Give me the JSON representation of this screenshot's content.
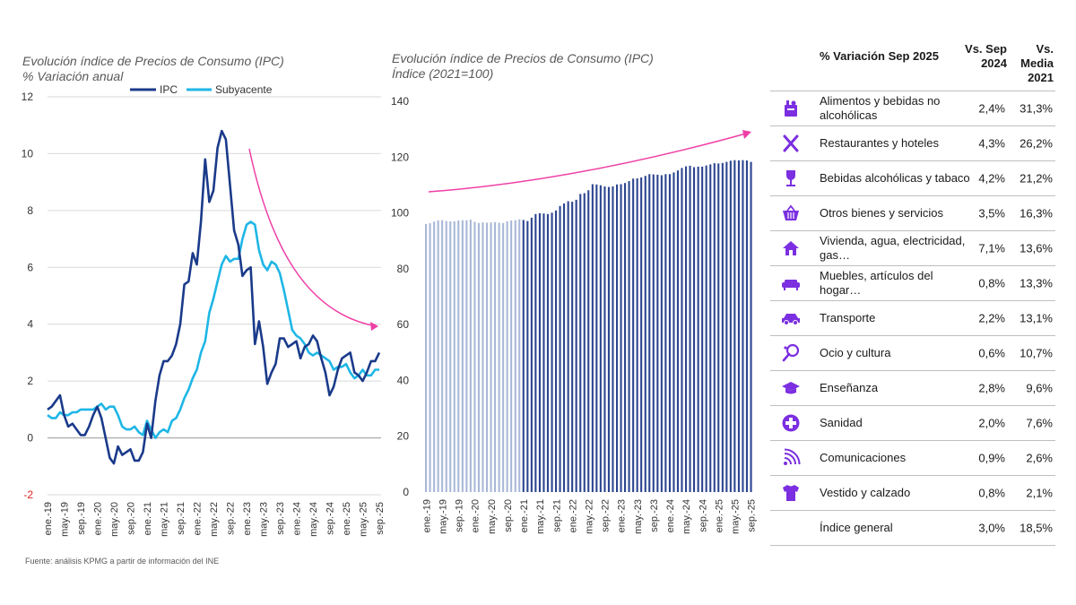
{
  "colors": {
    "ipc": "#1a3a8a",
    "subyacente": "#1fb6e6",
    "arrow": "#ee3fa6",
    "icon": "#7b2fe0",
    "bar_dark": "#2c4590",
    "bar_light": "#a9b8d8",
    "grid": "#d9d9d9"
  },
  "chart_data": [
    {
      "type": "line",
      "title": "Evolución índice de Precios de Consumo (IPC)",
      "subtitle": "% Variación anual",
      "ylim": [
        -2,
        12
      ],
      "yticks": [
        "12",
        "10",
        "8",
        "6",
        "4",
        "2",
        "0",
        "-2"
      ],
      "x_tick_labels": [
        "ene.-19",
        "may.-19",
        "sep.-19",
        "ene.-20",
        "may.-20",
        "sep.-20",
        "ene.-21",
        "may.-21",
        "sep.-21",
        "ene.-22",
        "may.-22",
        "sep.-22",
        "ene.-23",
        "may.-23",
        "sep.-23",
        "ene.-24",
        "may.-24",
        "sep.-24",
        "ene.-25",
        "may.-25",
        "sep.-25"
      ],
      "legend": [
        "IPC",
        "Subyacente"
      ],
      "legend_position": "top",
      "series": [
        {
          "name": "IPC",
          "values": [
            1.0,
            1.1,
            1.3,
            1.5,
            0.8,
            0.4,
            0.5,
            0.3,
            0.1,
            0.1,
            0.4,
            0.8,
            1.1,
            0.7,
            0.0,
            -0.7,
            -0.9,
            -0.3,
            -0.6,
            -0.5,
            -0.4,
            -0.8,
            -0.8,
            -0.5,
            0.5,
            0.0,
            1.3,
            2.2,
            2.7,
            2.7,
            2.9,
            3.3,
            4.0,
            5.4,
            5.5,
            6.5,
            6.1,
            7.6,
            9.8,
            8.3,
            8.7,
            10.2,
            10.8,
            10.5,
            8.9,
            7.3,
            6.8,
            5.7,
            5.9,
            6.0,
            3.3,
            4.1,
            3.2,
            1.9,
            2.3,
            2.6,
            3.5,
            3.5,
            3.2,
            3.3,
            3.4,
            2.8,
            3.2,
            3.3,
            3.6,
            3.4,
            2.8,
            2.3,
            1.5,
            1.8,
            2.4,
            2.8,
            2.9,
            3.0,
            2.3,
            2.2,
            2.0,
            2.3,
            2.7,
            2.7,
            3.0
          ]
        },
        {
          "name": "Subyacente",
          "values": [
            0.8,
            0.7,
            0.7,
            0.9,
            0.8,
            0.8,
            0.9,
            0.9,
            1.0,
            1.0,
            1.0,
            1.0,
            1.1,
            1.2,
            1.0,
            1.1,
            1.1,
            0.8,
            0.4,
            0.3,
            0.3,
            0.4,
            0.2,
            0.1,
            0.6,
            0.3,
            0.0,
            0.2,
            0.3,
            0.2,
            0.6,
            0.7,
            1.0,
            1.4,
            1.7,
            2.1,
            2.4,
            3.0,
            3.4,
            4.4,
            4.9,
            5.5,
            6.1,
            6.4,
            6.2,
            6.3,
            6.3,
            7.0,
            7.5,
            7.6,
            7.5,
            6.6,
            6.1,
            5.9,
            6.2,
            6.1,
            5.8,
            5.2,
            4.5,
            3.8,
            3.6,
            3.5,
            3.3,
            3.0,
            2.9,
            3.0,
            2.9,
            2.8,
            2.7,
            2.4,
            2.5,
            2.5,
            2.6,
            2.3,
            2.1,
            2.2,
            2.4,
            2.2,
            2.2,
            2.4,
            2.4
          ]
        }
      ],
      "annotation": "downward trend arrow"
    },
    {
      "type": "bar",
      "title": "Evolución índice de Precios de Consumo (IPC)",
      "subtitle": "Índice (2021=100)",
      "ylim": [
        0,
        140
      ],
      "yticks": [
        "140",
        "120",
        "100",
        "80",
        "60",
        "40",
        "20",
        "0"
      ],
      "x_tick_labels": [
        "ene.-19",
        "may.-19",
        "sep.-19",
        "ene.-20",
        "may.-20",
        "sep.-20",
        "ene.-21",
        "may.-21",
        "sep.-21",
        "ene.-22",
        "may.-22",
        "sep.-22",
        "ene.-23",
        "may.-23",
        "sep.-23",
        "ene.-24",
        "may.-24",
        "sep.-24",
        "ene.-25",
        "may.-25",
        "sep.-25"
      ],
      "series": [
        {
          "name": "IPC índice",
          "values": [
            96.0,
            96.3,
            96.9,
            97.3,
            97.4,
            97.1,
            97.0,
            97.0,
            97.3,
            97.4,
            97.4,
            97.6,
            96.8,
            96.4,
            96.6,
            96.5,
            96.6,
            96.7,
            96.5,
            96.4,
            97.0,
            97.3,
            97.4,
            97.7,
            97.5,
            97.1,
            98.3,
            99.6,
            99.9,
            99.8,
            99.6,
            100.1,
            100.9,
            102.5,
            103.4,
            104.2,
            104.0,
            104.7,
            106.8,
            107.1,
            108.1,
            110.3,
            110.2,
            109.9,
            109.5,
            109.3,
            109.5,
            110.2,
            110.3,
            110.7,
            111.4,
            112.3,
            112.4,
            112.7,
            113.3,
            113.9,
            113.8,
            113.7,
            113.5,
            113.9,
            113.9,
            114.5,
            115.2,
            116.1,
            116.7,
            116.9,
            116.4,
            116.6,
            116.6,
            117.0,
            117.4,
            117.8,
            117.7,
            117.9,
            118.3,
            118.7,
            118.9,
            118.8,
            118.9,
            118.8,
            118.3
          ]
        }
      ],
      "annotation": "upward trend arrow"
    },
    {
      "type": "table",
      "headers": [
        "% Variación Sep 2025",
        "Vs. Sep 2024",
        "Vs. Media 2021"
      ],
      "rows": [
        [
          "Alimentos y bebidas no alcohólicas",
          "2,4%",
          "31,3%"
        ],
        [
          "Restaurantes y hoteles",
          "4,3%",
          "26,2%"
        ],
        [
          "Bebidas alcohólicas y tabaco",
          "4,2%",
          "21,2%"
        ],
        [
          "Otros bienes y servicios",
          "3,5%",
          "16,3%"
        ],
        [
          "Vivienda, agua, electricidad, gas…",
          "7,1%",
          "13,6%"
        ],
        [
          "Muebles, artículos del hogar…",
          "0,8%",
          "13,3%"
        ],
        [
          "Transporte",
          "2,2%",
          "13,1%"
        ],
        [
          "Ocio y cultura",
          "0,6%",
          "10,7%"
        ],
        [
          "Enseñanza",
          "2,8%",
          "9,6%"
        ],
        [
          "Sanidad",
          "2,0%",
          "7,6%"
        ],
        [
          "Comunicaciones",
          "0,9%",
          "2,6%"
        ],
        [
          "Vestido y calzado",
          "0,8%",
          "2,1%"
        ],
        [
          "Índice general",
          "3,0%",
          "18,5%"
        ]
      ]
    }
  ],
  "left_chart": {
    "title": "Evolución índice de Precios de Consumo (IPC)",
    "subtitle": "% Variación anual",
    "legend_ipc": "IPC",
    "legend_sub": "Subyacente"
  },
  "mid_chart": {
    "title": "Evolución índice de Precios de Consumo (IPC)",
    "subtitle": "Índice (2021=100)"
  },
  "table": {
    "header_category": "% Variación Sep 2025",
    "header_col1": "Vs. Sep 2024",
    "header_col2": "Vs. Media 2021",
    "rows": [
      {
        "icon": "grocery-icon",
        "label": "Alimentos y bebidas no alcohólicas",
        "v1": "2,4%",
        "v2": "31,3%"
      },
      {
        "icon": "fork-knife-icon",
        "label": "Restaurantes y hoteles",
        "v1": "4,3%",
        "v2": "26,2%"
      },
      {
        "icon": "wine-glass-icon",
        "label": "Bebidas alcohólicas y tabaco",
        "v1": "4,2%",
        "v2": "21,2%"
      },
      {
        "icon": "shopping-basket-icon",
        "label": "Otros bienes y servicios",
        "v1": "3,5%",
        "v2": "16,3%"
      },
      {
        "icon": "house-icon",
        "label": "Vivienda, agua, electricidad, gas…",
        "v1": "7,1%",
        "v2": "13,6%"
      },
      {
        "icon": "sofa-icon",
        "label": "Muebles, artículos del hogar…",
        "v1": "0,8%",
        "v2": "13,3%"
      },
      {
        "icon": "car-icon",
        "label": "Transporte",
        "v1": "2,2%",
        "v2": "13,1%"
      },
      {
        "icon": "racket-icon",
        "label": "Ocio y cultura",
        "v1": "0,6%",
        "v2": "10,7%"
      },
      {
        "icon": "graduation-cap-icon",
        "label": "Enseñanza",
        "v1": "2,8%",
        "v2": "9,6%"
      },
      {
        "icon": "health-cross-icon",
        "label": "Sanidad",
        "v1": "2,0%",
        "v2": "7,6%"
      },
      {
        "icon": "signal-icon",
        "label": "Comunicaciones",
        "v1": "0,9%",
        "v2": "2,6%"
      },
      {
        "icon": "tshirt-icon",
        "label": "Vestido y calzado",
        "v1": "0,8%",
        "v2": "2,1%"
      },
      {
        "icon": "",
        "label": "Índice general",
        "v1": "3,0%",
        "v2": "18,5%"
      }
    ]
  },
  "source_note": "Fuente: análisis KPMG a partir de información del INE"
}
